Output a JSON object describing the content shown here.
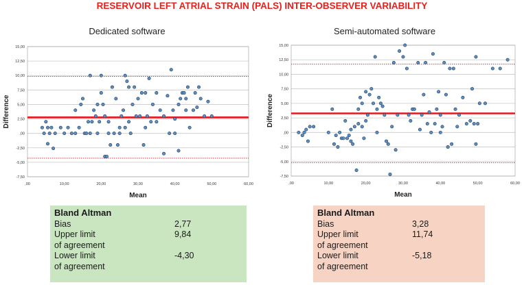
{
  "main_title": "RESERVOIR LEFT ATRIAL STRAIN (PALS) INTER-OBSERVER VARIABILITY",
  "colors": {
    "title": "#e8201c",
    "bias_line": "#e0181f",
    "limit_line": "#e0181f",
    "point_fill": "#5b8fc4",
    "point_stroke": "#1f3a5a",
    "grid": "#c8c8c8"
  },
  "chart_data": [
    {
      "type": "scatter",
      "title": "Dedicated software",
      "xlabel": "Mean",
      "ylabel": "Difference",
      "xlim": [
        0,
        60
      ],
      "ylim": [
        -7.5,
        15
      ],
      "x_ticks": [
        ",00",
        "10,00",
        "20,00",
        "30,00",
        "40,00",
        "50,00",
        "60,00"
      ],
      "y_ticks": [
        "15,00",
        "12,50",
        "10,00",
        "7,50",
        "5,00",
        "2,50",
        ",00",
        "-2,50",
        "-5,00",
        "-7,50"
      ],
      "bias": 2.77,
      "upper_loa": 9.84,
      "lower_loa": -4.3,
      "points": [
        [
          4,
          1
        ],
        [
          4.5,
          0
        ],
        [
          5,
          2
        ],
        [
          5.5,
          1
        ],
        [
          5.5,
          -1.8
        ],
        [
          6,
          0
        ],
        [
          6.5,
          1
        ],
        [
          7,
          -2.6
        ],
        [
          7.5,
          0
        ],
        [
          9,
          1
        ],
        [
          10,
          0
        ],
        [
          11,
          1
        ],
        [
          12,
          0
        ],
        [
          13,
          0
        ],
        [
          13,
          4
        ],
        [
          14,
          1
        ],
        [
          14.5,
          5
        ],
        [
          15,
          6
        ],
        [
          15.5,
          0
        ],
        [
          16,
          0
        ],
        [
          16.5,
          2
        ],
        [
          17,
          10
        ],
        [
          17,
          0
        ],
        [
          17.5,
          2
        ],
        [
          18,
          4
        ],
        [
          18.5,
          3
        ],
        [
          19,
          0
        ],
        [
          19,
          5
        ],
        [
          19.5,
          2
        ],
        [
          20,
          10
        ],
        [
          20,
          7
        ],
        [
          20.5,
          5
        ],
        [
          21,
          3
        ],
        [
          21,
          -4
        ],
        [
          21.5,
          -4
        ],
        [
          22,
          2
        ],
        [
          22,
          0
        ],
        [
          22.5,
          -2
        ],
        [
          23,
          8
        ],
        [
          23.5,
          0
        ],
        [
          24,
          6
        ],
        [
          24.5,
          -2
        ],
        [
          25,
          1
        ],
        [
          25,
          0
        ],
        [
          25.5,
          3
        ],
        [
          26,
          4
        ],
        [
          26.5,
          10
        ],
        [
          26.5,
          1
        ],
        [
          27,
          9
        ],
        [
          27.5,
          8
        ],
        [
          27.5,
          2
        ],
        [
          28,
          0
        ],
        [
          28.5,
          5
        ],
        [
          29,
          8
        ],
        [
          29.5,
          3
        ],
        [
          30,
          6
        ],
        [
          30.5,
          3
        ],
        [
          31,
          7
        ],
        [
          31.5,
          -2
        ],
        [
          32,
          7
        ],
        [
          32,
          1
        ],
        [
          32.5,
          3
        ],
        [
          33,
          9.5
        ],
        [
          33.5,
          2
        ],
        [
          34,
          5
        ],
        [
          35,
          7
        ],
        [
          35,
          2
        ],
        [
          36,
          4
        ],
        [
          37,
          -3.5
        ],
        [
          37,
          3
        ],
        [
          38,
          6.5
        ],
        [
          38.5,
          0
        ],
        [
          39,
          11
        ],
        [
          39.5,
          4
        ],
        [
          40,
          2.5
        ],
        [
          40,
          0
        ],
        [
          41,
          -3
        ],
        [
          41,
          5
        ],
        [
          41.5,
          6
        ],
        [
          42,
          7
        ],
        [
          42.5,
          7
        ],
        [
          43,
          6
        ],
        [
          43,
          4
        ],
        [
          43.5,
          8
        ],
        [
          44,
          1
        ],
        [
          45,
          4
        ],
        [
          45.5,
          7
        ],
        [
          46,
          4.5
        ],
        [
          46.5,
          8
        ],
        [
          47,
          6
        ],
        [
          48,
          3
        ],
        [
          49,
          5.5
        ],
        [
          50,
          3
        ]
      ]
    },
    {
      "type": "scatter",
      "title": "Semi-automated software",
      "xlabel": "Mean",
      "ylabel": "Difference",
      "xlim": [
        0,
        60
      ],
      "ylim": [
        -7.5,
        15
      ],
      "x_ticks": [
        ",00",
        "10,00",
        "20,00",
        "30,00",
        "40,00",
        "50,00",
        "60,00"
      ],
      "y_ticks": [
        "15,00",
        "12,50",
        "10,00",
        "7,50",
        "5,00",
        "2,50",
        ",00",
        "-2,50",
        "-5,00",
        "-7,50"
      ],
      "bias": 3.28,
      "upper_loa": 11.74,
      "lower_loa": -5.18,
      "points": [
        [
          2,
          0
        ],
        [
          3,
          -0.5
        ],
        [
          3.5,
          0
        ],
        [
          4,
          0.5
        ],
        [
          4.5,
          -1.5
        ],
        [
          5,
          1
        ],
        [
          6,
          1
        ],
        [
          10,
          0
        ],
        [
          11,
          4
        ],
        [
          11.5,
          -2
        ],
        [
          12,
          -0.5
        ],
        [
          12.5,
          -2.5
        ],
        [
          13,
          0
        ],
        [
          13.5,
          -1
        ],
        [
          14,
          -1
        ],
        [
          14.5,
          2
        ],
        [
          15,
          -1
        ],
        [
          15.5,
          -0.5
        ],
        [
          16,
          0.5
        ],
        [
          16,
          -1.5
        ],
        [
          16.5,
          -2
        ],
        [
          17,
          1
        ],
        [
          17.5,
          -6.5
        ],
        [
          18,
          4
        ],
        [
          18,
          1.5
        ],
        [
          18.5,
          6
        ],
        [
          19,
          1
        ],
        [
          19,
          5
        ],
        [
          19.5,
          -1
        ],
        [
          20,
          7
        ],
        [
          20,
          2
        ],
        [
          20.5,
          3
        ],
        [
          21,
          6.5
        ],
        [
          21.5,
          7.5
        ],
        [
          22,
          5
        ],
        [
          22.5,
          13
        ],
        [
          23,
          4
        ],
        [
          23,
          0
        ],
        [
          23.5,
          6
        ],
        [
          24,
          5
        ],
        [
          24.5,
          4.5
        ],
        [
          25,
          3
        ],
        [
          25.5,
          -1.5
        ],
        [
          26,
          -2
        ],
        [
          26.5,
          -7.2
        ],
        [
          27,
          1
        ],
        [
          27.5,
          12
        ],
        [
          28,
          -3
        ],
        [
          28.5,
          3
        ],
        [
          29,
          14
        ],
        [
          30,
          13
        ],
        [
          30.5,
          15
        ],
        [
          31,
          11
        ],
        [
          31.5,
          3
        ],
        [
          32,
          2
        ],
        [
          32.5,
          4
        ],
        [
          33,
          4
        ],
        [
          34,
          12
        ],
        [
          34.5,
          0.5
        ],
        [
          35,
          3
        ],
        [
          35.5,
          6.5
        ],
        [
          36,
          12
        ],
        [
          36.5,
          1.5
        ],
        [
          37,
          3.5
        ],
        [
          37.5,
          0
        ],
        [
          38,
          13.5
        ],
        [
          38.5,
          1.5
        ],
        [
          39,
          4
        ],
        [
          39.5,
          7
        ],
        [
          40,
          3
        ],
        [
          40,
          0
        ],
        [
          40.5,
          1
        ],
        [
          41,
          12
        ],
        [
          41.5,
          6.5
        ],
        [
          42,
          -2.5
        ],
        [
          42.5,
          11
        ],
        [
          43,
          -2
        ],
        [
          43.5,
          11
        ],
        [
          44,
          4
        ],
        [
          44.5,
          1
        ],
        [
          45,
          3
        ],
        [
          46,
          6
        ],
        [
          47,
          1.5
        ],
        [
          48,
          2
        ],
        [
          48.5,
          7.5
        ],
        [
          49,
          1.5
        ],
        [
          49.5,
          -2
        ],
        [
          49.5,
          13
        ],
        [
          50,
          1.5
        ],
        [
          50.5,
          5
        ],
        [
          52,
          5
        ],
        [
          54,
          11
        ],
        [
          56,
          11
        ],
        [
          58,
          12.5
        ]
      ]
    }
  ],
  "bland_altman": [
    {
      "heading": "Bland Altman",
      "bias_label": "Bias",
      "bias_value": "2,77",
      "upper_label_1": "Upper limit",
      "upper_label_2": "of agreement",
      "upper_value": "9,84",
      "lower_label_1": "Lower limit",
      "lower_label_2": "of agreement",
      "lower_value": "-4,30"
    },
    {
      "heading": "Bland Altman",
      "bias_label": "Bias",
      "bias_value": "3,28",
      "upper_label_1": "Upper limit",
      "upper_label_2": "of agreement",
      "upper_value": "11,74",
      "lower_label_1": "Lower limit",
      "lower_label_2": "of agreement",
      "lower_value": "-5,18"
    }
  ]
}
